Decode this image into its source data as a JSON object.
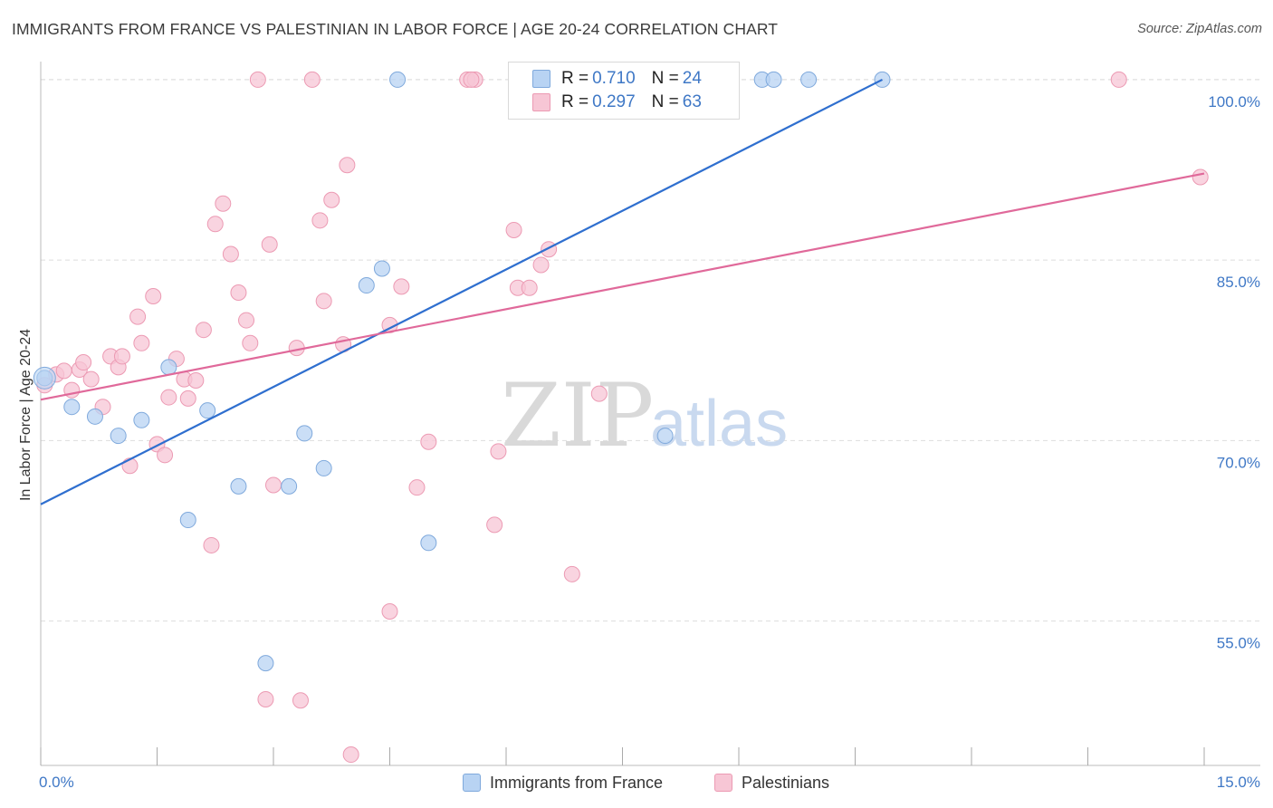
{
  "title": "IMMIGRANTS FROM FRANCE VS PALESTINIAN IN LABOR FORCE | AGE 20-24 CORRELATION CHART",
  "source": "Source: ZipAtlas.com",
  "watermark": {
    "zip": "ZIP",
    "atlas": "atlas"
  },
  "colors": {
    "blue_fill": "#b8d3f3",
    "blue_stroke": "#7fa9dc",
    "blue_line": "#2f6fcf",
    "pink_fill": "#f7c6d5",
    "pink_stroke": "#ec9ab3",
    "pink_line": "#e0699a",
    "tick_text": "#3f78c6",
    "grid": "#dddddd"
  },
  "legend": {
    "rows": [
      {
        "r_label": "R = ",
        "r_value": "0.710",
        "n_label": "N = ",
        "n_value": "24"
      },
      {
        "r_label": "R = ",
        "r_value": "0.297",
        "n_label": "N = ",
        "n_value": "63"
      }
    ]
  },
  "chart_data": {
    "type": "scatter",
    "title": "IMMIGRANTS FROM FRANCE VS PALESTINIAN IN LABOR FORCE | AGE 20-24 CORRELATION CHART",
    "xlabel": "",
    "ylabel": "In Labor Force | Age 20-24",
    "xlim": [
      0,
      15
    ],
    "ylim": [
      43,
      101.5
    ],
    "x_tick_labels": [
      "0.0%",
      "15.0%"
    ],
    "y_ticks": [
      55,
      70,
      85,
      100
    ],
    "y_tick_labels": [
      "55.0%",
      "70.0%",
      "85.0%",
      "100.0%"
    ],
    "grid": "horizontal dashed",
    "legend_position": "top-center",
    "series": [
      {
        "name": "Immigrants from France",
        "color": "#b8d3f3",
        "trend": {
          "x": [
            0,
            10.85
          ],
          "y": [
            64.7,
            100.0
          ]
        },
        "points": [
          [
            0.05,
            75.2
          ],
          [
            0.4,
            72.8
          ],
          [
            0.7,
            72.0
          ],
          [
            1.0,
            70.4
          ],
          [
            1.3,
            71.7
          ],
          [
            1.65,
            76.1
          ],
          [
            1.9,
            63.4
          ],
          [
            2.15,
            72.5
          ],
          [
            2.55,
            66.2
          ],
          [
            2.9,
            51.5
          ],
          [
            3.2,
            66.2
          ],
          [
            3.4,
            70.6
          ],
          [
            3.65,
            67.7
          ],
          [
            4.2,
            82.9
          ],
          [
            4.4,
            84.3
          ],
          [
            4.6,
            100.0
          ],
          [
            5.0,
            61.5
          ],
          [
            6.7,
            100.0
          ],
          [
            8.05,
            70.4
          ],
          [
            9.3,
            100.0
          ],
          [
            9.45,
            100.0
          ],
          [
            9.9,
            100.0
          ],
          [
            10.85,
            100.0
          ],
          [
            8.0,
            100.0
          ]
        ]
      },
      {
        "name": "Palestinians",
        "color": "#f7c6d5",
        "trend": {
          "x": [
            0,
            15
          ],
          "y": [
            73.4,
            92.2
          ]
        },
        "points": [
          [
            0.05,
            74.6
          ],
          [
            0.2,
            75.5
          ],
          [
            0.3,
            75.8
          ],
          [
            0.4,
            74.2
          ],
          [
            0.5,
            75.9
          ],
          [
            0.55,
            76.5
          ],
          [
            0.65,
            75.1
          ],
          [
            0.8,
            72.8
          ],
          [
            0.9,
            77.0
          ],
          [
            1.0,
            76.1
          ],
          [
            1.05,
            77.0
          ],
          [
            1.15,
            67.9
          ],
          [
            1.25,
            80.3
          ],
          [
            1.3,
            78.1
          ],
          [
            1.45,
            82.0
          ],
          [
            1.5,
            69.7
          ],
          [
            1.6,
            68.8
          ],
          [
            1.65,
            73.6
          ],
          [
            1.75,
            76.8
          ],
          [
            1.85,
            75.1
          ],
          [
            1.9,
            73.5
          ],
          [
            2.0,
            75.0
          ],
          [
            2.1,
            79.2
          ],
          [
            2.2,
            61.3
          ],
          [
            2.25,
            88.0
          ],
          [
            2.35,
            89.7
          ],
          [
            2.45,
            85.5
          ],
          [
            2.55,
            82.3
          ],
          [
            2.65,
            80.0
          ],
          [
            2.7,
            78.1
          ],
          [
            2.8,
            100.0
          ],
          [
            2.9,
            48.5
          ],
          [
            2.95,
            86.3
          ],
          [
            3.0,
            66.3
          ],
          [
            3.3,
            77.7
          ],
          [
            3.35,
            48.4
          ],
          [
            3.6,
            88.3
          ],
          [
            3.65,
            81.6
          ],
          [
            3.75,
            90.0
          ],
          [
            3.9,
            78.0
          ],
          [
            3.95,
            92.9
          ],
          [
            4.0,
            43.9
          ],
          [
            4.5,
            79.6
          ],
          [
            4.5,
            55.8
          ],
          [
            4.65,
            82.8
          ],
          [
            4.85,
            66.1
          ],
          [
            5.0,
            69.9
          ],
          [
            5.5,
            100.0
          ],
          [
            5.6,
            100.0
          ],
          [
            5.85,
            63.0
          ],
          [
            5.9,
            69.1
          ],
          [
            6.1,
            87.5
          ],
          [
            6.15,
            82.7
          ],
          [
            6.3,
            82.7
          ],
          [
            6.45,
            84.6
          ],
          [
            6.55,
            85.9
          ],
          [
            6.85,
            58.9
          ],
          [
            7.2,
            73.9
          ],
          [
            8.0,
            100.0
          ],
          [
            13.9,
            100.0
          ],
          [
            14.95,
            91.9
          ],
          [
            3.5,
            100.0
          ],
          [
            5.55,
            100.0
          ]
        ]
      }
    ]
  }
}
